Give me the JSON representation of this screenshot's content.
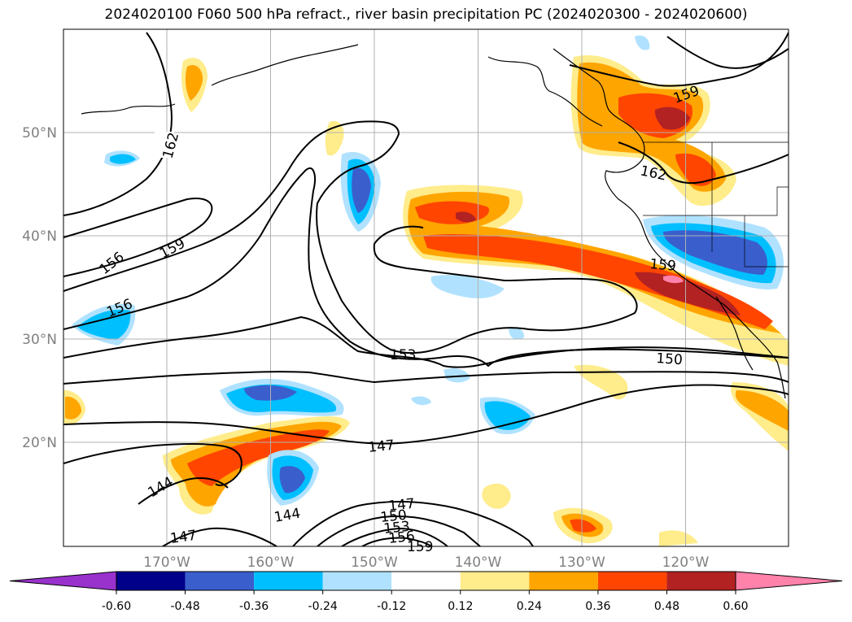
{
  "title": "2024020100 F060 500 hPa refract., river basin precipitation PC (2024020300 - 2024020600)",
  "latitudes": [
    {
      "label": "50°N",
      "deg": 50
    },
    {
      "label": "40°N",
      "deg": 40
    },
    {
      "label": "30°N",
      "deg": 30
    },
    {
      "label": "20°N",
      "deg": 20
    }
  ],
  "longitudes": [
    {
      "label": "170°W",
      "deg": -170
    },
    {
      "label": "160°W",
      "deg": -160
    },
    {
      "label": "150°W",
      "deg": -150
    },
    {
      "label": "140°W",
      "deg": -140
    },
    {
      "label": "130°W",
      "deg": -130
    },
    {
      "label": "120°W",
      "deg": -120
    }
  ],
  "contour_labels": [
    "162",
    "159",
    "156",
    "156",
    "153",
    "150",
    "147",
    "144",
    "144",
    "147",
    "147",
    "150",
    "153",
    "156",
    "159",
    "159",
    "162",
    "159"
  ],
  "colorbar": {
    "colors": [
      "#9932cc",
      "#00008b",
      "#3a5fcd",
      "#00bfff",
      "#b0e2ff",
      "#ffffff",
      "#ffec8b",
      "#ffa500",
      "#ff4500",
      "#b22222",
      "#ff82ab"
    ],
    "tick_labels": [
      "-0.60",
      "-0.48",
      "-0.36",
      "-0.24",
      "-0.12",
      "0.12",
      "0.24",
      "0.36",
      "0.48",
      "0.60"
    ]
  }
}
